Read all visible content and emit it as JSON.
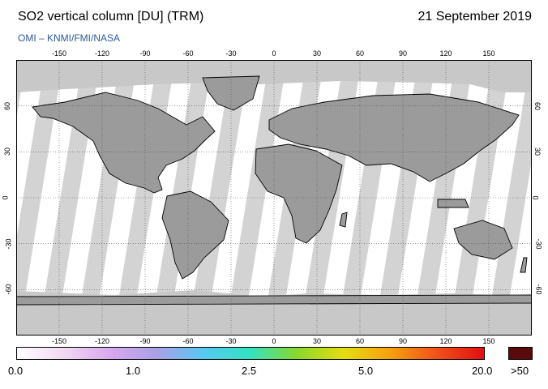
{
  "header": {
    "title": "SO2 vertical column [DU] (TRM)",
    "date": "21 September 2019",
    "credit": "OMI  –  KNMI/FMI/NASA"
  },
  "map": {
    "projection": "equirectangular",
    "lon_range": [
      -180,
      180
    ],
    "lat_range": [
      -90,
      90
    ],
    "lon_ticks": [
      "-150",
      "-120",
      "-90",
      "-60",
      "-30",
      "0",
      "30",
      "60",
      "90",
      "120",
      "150"
    ],
    "lat_ticks": [
      "60",
      "30",
      "0",
      "-30",
      "-60"
    ],
    "grid": true,
    "colors": {
      "ocean_land": "#ffffff",
      "no_data": "#d3d3d3",
      "polar_fill": "#c8c8c8",
      "swath_gap": "#9b9b9b",
      "coast": "#000000"
    }
  },
  "colorbar": {
    "labels": [
      "0.0",
      "1.0",
      "2.5",
      "5.0",
      "20.0",
      ">50"
    ],
    "colors": [
      "#ffffff",
      "#f2d8f2",
      "#d8a8ee",
      "#a9a0e6",
      "#56c8f2",
      "#33e2c0",
      "#8ad82c",
      "#e6dc12",
      "#f6a010",
      "#f2501a",
      "#e01010"
    ],
    "overflow_color": "#5a0a0a"
  }
}
